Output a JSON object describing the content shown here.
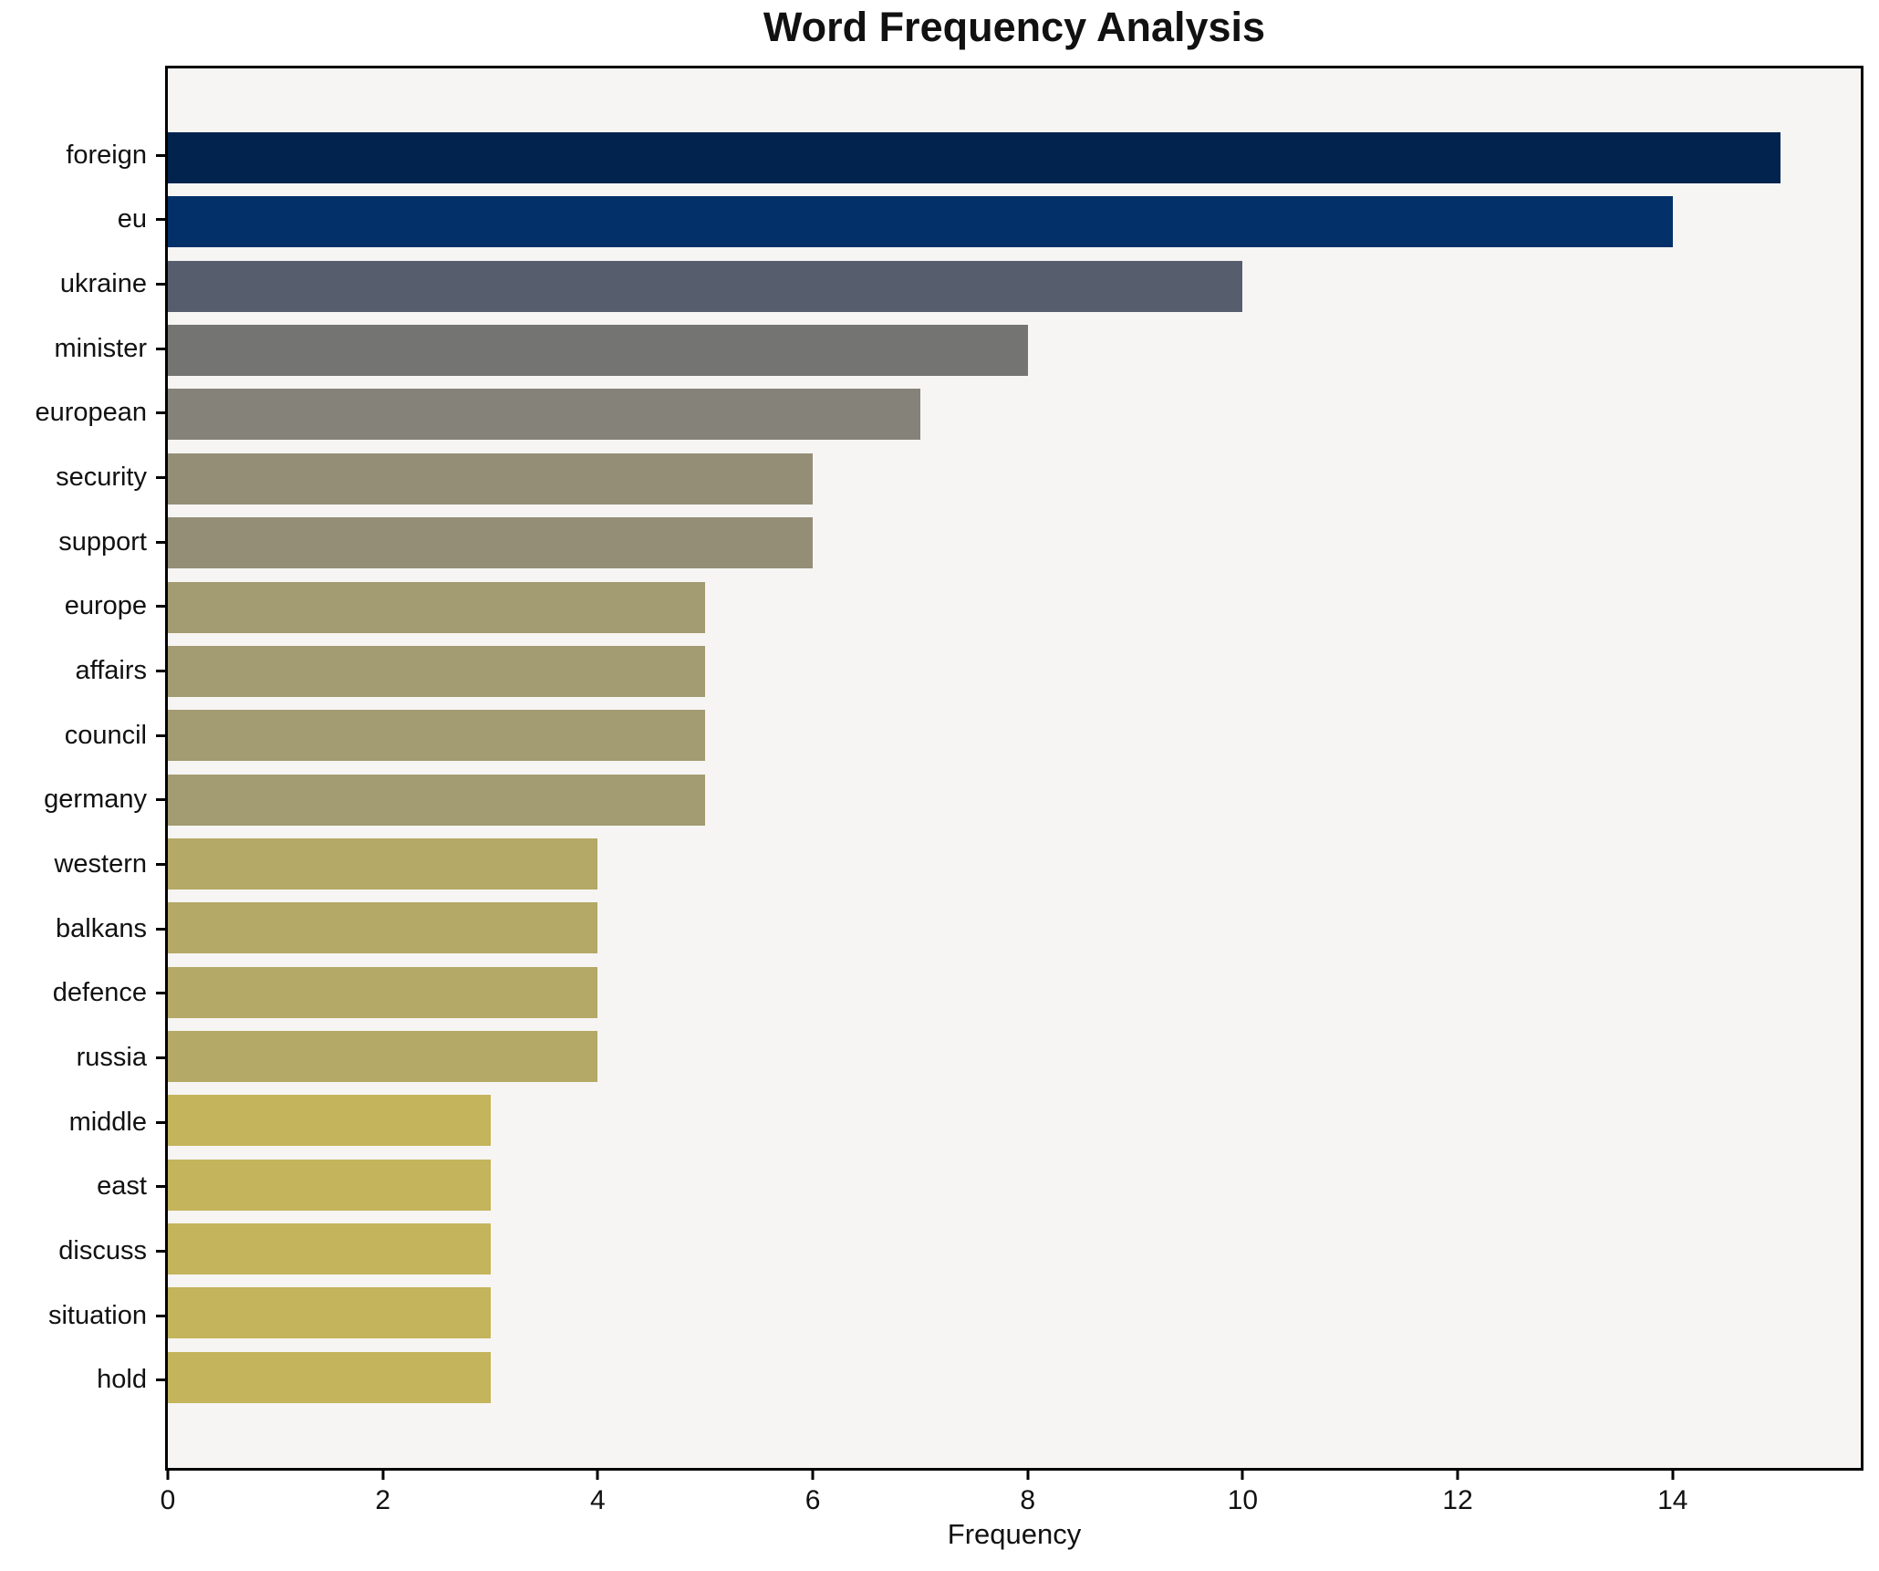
{
  "chart_data": {
    "type": "bar",
    "orientation": "horizontal",
    "title": "Word Frequency Analysis",
    "xlabel": "Frequency",
    "ylabel": "",
    "categories": [
      "foreign",
      "eu",
      "ukraine",
      "minister",
      "european",
      "security",
      "support",
      "europe",
      "affairs",
      "council",
      "germany",
      "western",
      "balkans",
      "defence",
      "russia",
      "middle",
      "east",
      "discuss",
      "situation",
      "hold"
    ],
    "values": [
      15,
      14,
      10,
      8,
      7,
      6,
      6,
      5,
      5,
      5,
      5,
      4,
      4,
      4,
      4,
      3,
      3,
      3,
      3,
      3
    ],
    "bar_colors": [
      "#02234d",
      "#04306a",
      "#565e6e",
      "#747473",
      "#85827a",
      "#948e77",
      "#948e77",
      "#a39b71",
      "#a39b71",
      "#a39b71",
      "#a39b71",
      "#b4a966",
      "#b4a966",
      "#b4a966",
      "#b4a966",
      "#c4b45c",
      "#c4b45c",
      "#c4b45c",
      "#c4b45c",
      "#c4b45c"
    ],
    "xlim": [
      0,
      15.75
    ],
    "xticks": [
      0,
      2,
      4,
      6,
      8,
      10,
      12,
      14
    ],
    "grid": false,
    "legend": null,
    "colors": {
      "plot_background": "#f6f5f3",
      "figure_background": "#ffffff",
      "spine": "#000000",
      "text": "#111111"
    }
  }
}
